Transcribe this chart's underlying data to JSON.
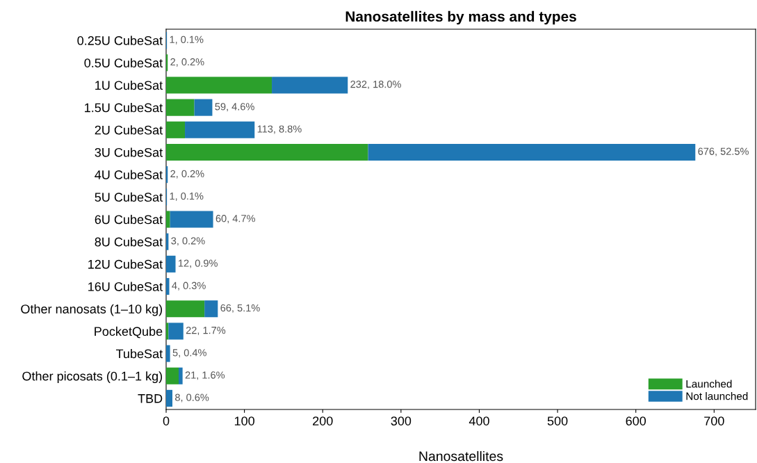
{
  "chart_data": {
    "type": "bar",
    "orientation": "horizontal",
    "stacked": true,
    "title": "Nanosatellites by mass and types",
    "xlabel": "Nanosatellites",
    "categories": [
      "0.25U CubeSat",
      "0.5U CubeSat",
      "1U CubeSat",
      "1.5U CubeSat",
      "2U CubeSat",
      "3U CubeSat",
      "4U CubeSat",
      "5U CubeSat",
      "6U CubeSat",
      "8U CubeSat",
      "12U CubeSat",
      "16U CubeSat",
      "Other nanosats (1–10 kg)",
      "PocketQube",
      "TubeSat",
      "Other picosats (0.1–1 kg)",
      "TBD"
    ],
    "series": [
      {
        "name": "Launched",
        "color": "#2ca02c",
        "values": [
          0,
          2,
          135,
          36,
          24,
          258,
          0,
          0,
          5,
          0,
          0,
          0,
          49,
          3,
          0,
          16,
          0
        ]
      },
      {
        "name": "Not launched",
        "color": "#1f77b4",
        "values": [
          1,
          0,
          97,
          23,
          89,
          418,
          2,
          1,
          55,
          3,
          12,
          4,
          17,
          19,
          5,
          5,
          8
        ]
      }
    ],
    "totals": [
      "1, 0.1%",
      "2, 0.2%",
      "232, 18.0%",
      "59, 4.6%",
      "113, 8.8%",
      "676, 52.5%",
      "2, 0.2%",
      "1, 0.1%",
      "60, 4.7%",
      "3, 0.2%",
      "12, 0.9%",
      "4, 0.3%",
      "66, 5.1%",
      "22, 1.7%",
      "5, 0.4%",
      "21, 1.6%",
      "8, 0.6%"
    ],
    "xlim": [
      0,
      753
    ],
    "xticks": [
      0,
      100,
      200,
      300,
      400,
      500,
      600,
      700
    ],
    "grid": false,
    "legend": "bottom right"
  }
}
